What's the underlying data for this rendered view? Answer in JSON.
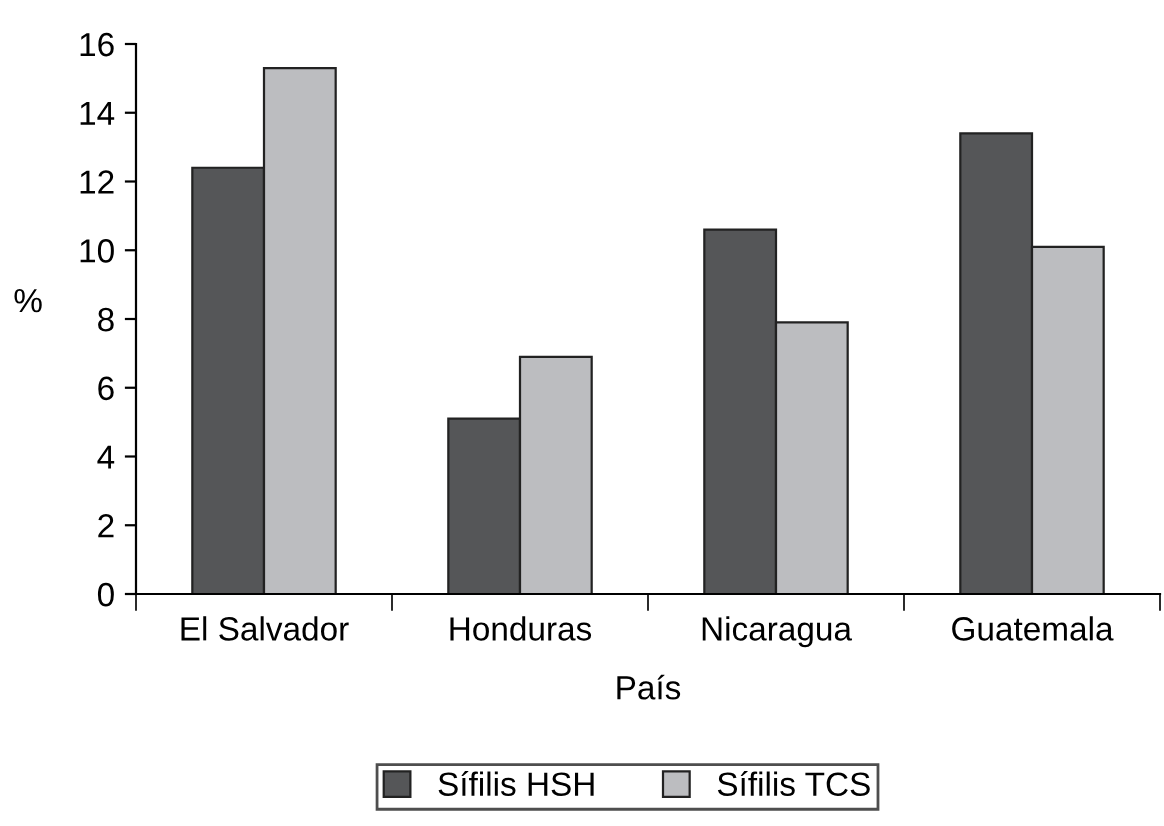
{
  "chart_data": {
    "type": "bar",
    "xlabel": "País",
    "ylabel": "%",
    "categories": [
      "El Salvador",
      "Honduras",
      "Nicaragua",
      "Guatemala"
    ],
    "series": [
      {
        "name": "Sífilis HSH",
        "color": "#555658",
        "values": [
          12.4,
          5.1,
          10.6,
          13.4
        ]
      },
      {
        "name": "Sífilis TCS",
        "color": "#bcbdc0",
        "values": [
          15.3,
          6.9,
          7.9,
          10.1
        ]
      }
    ],
    "ylim": [
      0,
      16
    ],
    "yticks": [
      0,
      2,
      4,
      6,
      8,
      10,
      12,
      14,
      16
    ],
    "grid": false,
    "legend": "bottom"
  }
}
